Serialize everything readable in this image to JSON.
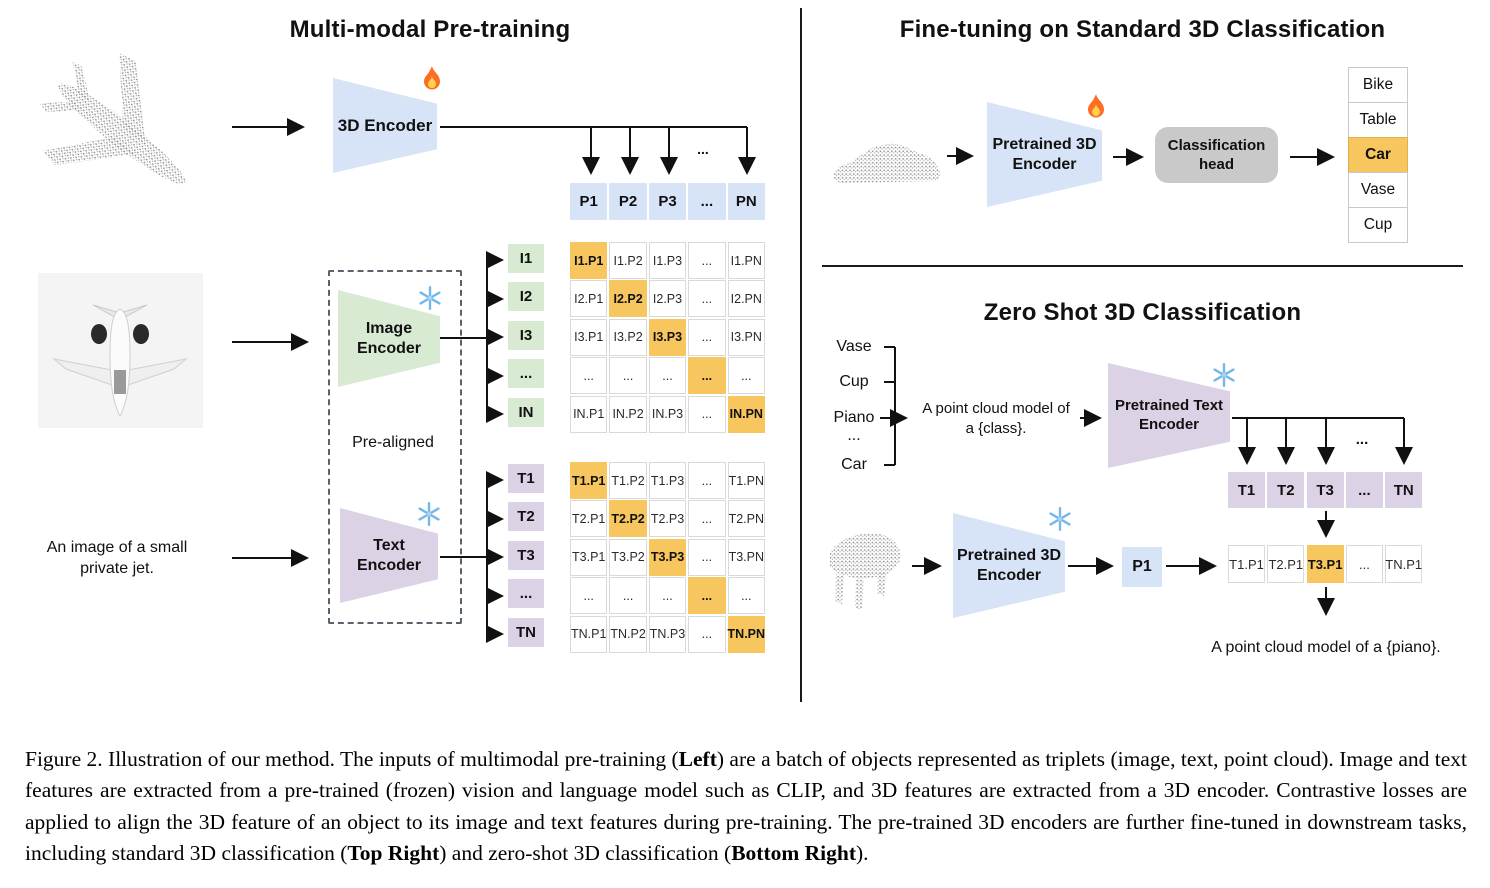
{
  "colors": {
    "encoder_blue": "#d7e3f7",
    "encoder_green": "#d9ead3",
    "encoder_purple": "#dcd2e6",
    "highlight_orange": "#f7c65e",
    "head_gray": "#c9c9c9"
  },
  "icons": {
    "trainable": "fire-icon",
    "frozen": "snowflake-icon",
    "inputs": [
      "airplane-point-cloud",
      "jet-photo",
      "car-point-cloud",
      "piano-point-cloud"
    ]
  },
  "pretraining": {
    "title": "Multi-modal Pre-training",
    "encoder_3d": {
      "label": "3D Encoder",
      "state_icon": "fire"
    },
    "image_encoder": {
      "label": "Image\nEncoder",
      "state_icon": "snowflake"
    },
    "text_encoder": {
      "label": "Text\nEncoder",
      "state_icon": "snowflake"
    },
    "pre_aligned_label": "Pre-aligned",
    "text_input": "An image of a small private jet.",
    "ellipsis": "...",
    "p_row": [
      "P1",
      "P2",
      "P3",
      "...",
      "PN"
    ],
    "i_headers": [
      "I1",
      "I2",
      "I3",
      "...",
      "IN"
    ],
    "i_matrix": [
      [
        "I1.P1",
        "I1.P2",
        "I1.P3",
        "...",
        "I1.PN"
      ],
      [
        "I2.P1",
        "I2.P2",
        "I2.P3",
        "...",
        "I2.PN"
      ],
      [
        "I3.P1",
        "I3.P2",
        "I3.P3",
        "...",
        "I3.PN"
      ],
      [
        "...",
        "...",
        "...",
        "...",
        "..."
      ],
      [
        "IN.P1",
        "IN.P2",
        "IN.P3",
        "...",
        "IN.PN"
      ]
    ],
    "t_headers": [
      "T1",
      "T2",
      "T3",
      "...",
      "TN"
    ],
    "t_matrix": [
      [
        "T1.P1",
        "T1.P2",
        "T1.P3",
        "...",
        "T1.PN"
      ],
      [
        "T2.P1",
        "T2.P2",
        "T2.P3",
        "...",
        "T2.PN"
      ],
      [
        "T3.P1",
        "T3.P2",
        "T3.P3",
        "...",
        "T3.PN"
      ],
      [
        "...",
        "...",
        "...",
        "...",
        "..."
      ],
      [
        "TN.P1",
        "TN.P2",
        "TN.P3",
        "...",
        "TN.PN"
      ]
    ]
  },
  "finetuning": {
    "title": "Fine-tuning on Standard 3D Classification",
    "encoder": {
      "label": "Pretrained 3D\nEncoder",
      "state_icon": "fire"
    },
    "head": {
      "label": "Classification\nhead"
    },
    "classes": [
      "Bike",
      "Table",
      "Car",
      "Vase",
      "Cup"
    ],
    "predicted_class": "Car"
  },
  "zeroshot": {
    "title": "Zero Shot 3D Classification",
    "class_list": [
      "Vase",
      "Cup",
      "Piano",
      "...",
      "Car"
    ],
    "prompt": "A point cloud model of\na {class}.",
    "text_encoder": {
      "label": "Pretrained Text\nEncoder",
      "state_icon": "snowflake"
    },
    "t_row": [
      "T1",
      "T2",
      "T3",
      "...",
      "TN"
    ],
    "encoder_3d": {
      "label": "Pretrained 3D\nEncoder",
      "state_icon": "snowflake"
    },
    "p_cell": "P1",
    "scores_row": [
      "T1.P1",
      "T2.P1",
      "T3.P1",
      "...",
      "TN.P1"
    ],
    "best_match_index": 2,
    "ellipsis": "...",
    "output_text": "A point cloud model of a {piano}."
  },
  "caption": {
    "segments": [
      {
        "text": "Figure 2. Illustration of our method. The inputs of multimodal pre-training (",
        "bold": false
      },
      {
        "text": "Left",
        "bold": true
      },
      {
        "text": ") are a batch of objects represented as triplets (image, text, point cloud). Image and text features are extracted from a pre-trained (frozen) vision and language model such as CLIP, and 3D features are extracted from a 3D encoder. Contrastive losses are applied to align the 3D feature of an object to its image and text features during pre-training. The pre-trained 3D encoders are further fine-tuned in downstream tasks, including standard 3D classification (",
        "bold": false
      },
      {
        "text": "Top Right",
        "bold": true
      },
      {
        "text": ") and zero-shot 3D classification (",
        "bold": false
      },
      {
        "text": "Bottom Right",
        "bold": true
      },
      {
        "text": ").",
        "bold": false
      }
    ]
  }
}
